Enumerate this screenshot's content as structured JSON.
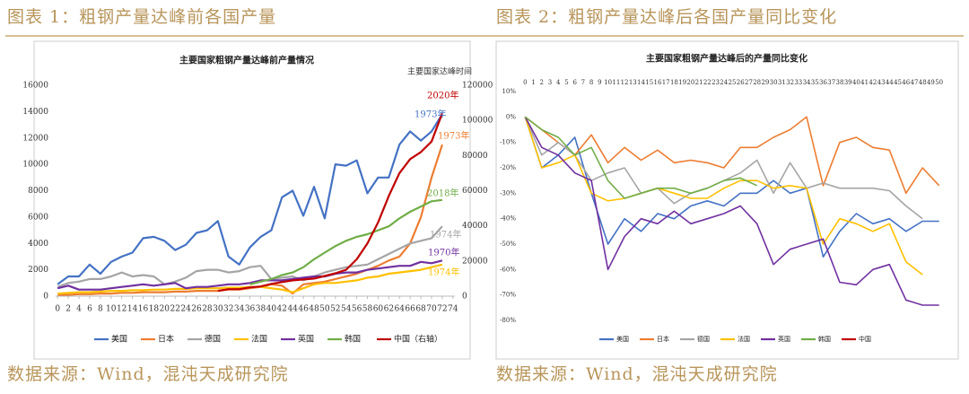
{
  "captions": [
    "图表 1：粗钢产量达峰前各国产量",
    "图表 2：粗钢产量达峰后各国产量同比变化"
  ],
  "sources": [
    "数据来源：Wind，混沌天成研究院",
    "数据来源：Wind，混沌天成研究院"
  ],
  "chart_data": [
    {
      "type": "line",
      "title": "主要国家粗钢产量达峰前产量情况",
      "y2_label": "主要国家达峰时间",
      "x": [
        0,
        2,
        4,
        6,
        8,
        10,
        12,
        14,
        16,
        18,
        20,
        22,
        24,
        26,
        28,
        30,
        32,
        34,
        36,
        38,
        40,
        42,
        44,
        46,
        48,
        50,
        52,
        54,
        56,
        58,
        60,
        62,
        64,
        66,
        68,
        70,
        72
      ],
      "xlim": [
        0,
        74
      ],
      "xticks": [
        0,
        2,
        4,
        6,
        8,
        10,
        12,
        14,
        16,
        18,
        20,
        22,
        24,
        26,
        28,
        30,
        32,
        34,
        36,
        38,
        40,
        42,
        44,
        46,
        48,
        50,
        52,
        54,
        56,
        58,
        60,
        62,
        64,
        66,
        68,
        70,
        72,
        74
      ],
      "ylim": [
        0,
        16000
      ],
      "yticks": [
        0,
        2000,
        4000,
        6000,
        8000,
        10000,
        12000,
        14000,
        16000
      ],
      "y2lim": [
        0,
        120000
      ],
      "y2ticks": [
        0,
        20000,
        40000,
        60000,
        80000,
        100000,
        120000
      ],
      "grid": false,
      "legend": "bottom",
      "xaxis_position": "bottom",
      "annotations": [
        "2020年",
        "1973年",
        "1973年",
        "2018年",
        "1974年",
        "1970年",
        "1974年"
      ],
      "series": [
        {
          "name": "美国",
          "color": "#4472c4",
          "values": [
            900,
            1500,
            1500,
            2400,
            1700,
            2600,
            3000,
            3300,
            4400,
            4500,
            4200,
            3500,
            3900,
            4800,
            5000,
            5700,
            3000,
            2400,
            3700,
            4500,
            5000,
            7500,
            8000,
            6100,
            8300,
            5900,
            10000,
            9900,
            10300,
            7800,
            9000,
            9000,
            11500,
            12500,
            11800,
            12500,
            13800
          ]
        },
        {
          "name": "日本",
          "color": "#ed7d31",
          "values": [
            100,
            100,
            150,
            150,
            200,
            200,
            250,
            250,
            300,
            300,
            300,
            350,
            350,
            400,
            400,
            400,
            500,
            500,
            600,
            700,
            900,
            800,
            200,
            900,
            1000,
            1100,
            1300,
            1500,
            1700,
            2000,
            2300,
            2700,
            3000,
            4000,
            6000,
            9000,
            11500
          ]
        },
        {
          "name": "德国",
          "color": "#a5a5a5",
          "values": [
            700,
            1000,
            1100,
            1300,
            1300,
            1500,
            1800,
            1500,
            1600,
            1500,
            900,
            1100,
            1400,
            1900,
            2000,
            2000,
            1800,
            1900,
            2200,
            2300,
            1300,
            1400,
            1500,
            1200,
            1500,
            1800,
            2000,
            2200,
            2300,
            2400,
            2800,
            3200,
            3600,
            4000,
            4200,
            4400,
            5300
          ]
        },
        {
          "name": "法国",
          "color": "#ffc000",
          "values": [
            200,
            250,
            300,
            300,
            350,
            400,
            400,
            450,
            450,
            500,
            500,
            550,
            550,
            600,
            600,
            600,
            650,
            650,
            700,
            700,
            600,
            500,
            300,
            600,
            900,
            1000,
            1000,
            1100,
            1200,
            1400,
            1500,
            1700,
            1800,
            1900,
            2000,
            2200,
            2400
          ]
        },
        {
          "name": "英国",
          "color": "#7030a0",
          "values": [
            600,
            800,
            500,
            500,
            500,
            600,
            700,
            800,
            900,
            800,
            900,
            1000,
            600,
            700,
            700,
            800,
            900,
            900,
            1000,
            1200,
            1200,
            1200,
            1300,
            1400,
            1500,
            1500,
            1700,
            1800,
            1800,
            2000,
            2100,
            2200,
            2300,
            2300,
            2600,
            2500,
            2700
          ]
        },
        {
          "name": "韩国",
          "color": "#70ad47",
          "values": [
            null,
            null,
            null,
            null,
            null,
            null,
            null,
            null,
            null,
            null,
            null,
            null,
            null,
            null,
            null,
            null,
            null,
            null,
            900,
            1100,
            1300,
            1600,
            1800,
            2200,
            2800,
            3300,
            3800,
            4200,
            4500,
            4700,
            5000,
            5300,
            5900,
            6400,
            6800,
            7200,
            7300
          ]
        },
        {
          "name": "中国（右轴）",
          "color": "#c00000",
          "axis": "y2",
          "values": [
            null,
            null,
            null,
            null,
            null,
            null,
            null,
            null,
            null,
            null,
            null,
            null,
            null,
            null,
            null,
            3000,
            4000,
            4000,
            5000,
            5500,
            7000,
            8000,
            9000,
            9500,
            10000,
            11500,
            13000,
            15000,
            21000,
            30000,
            42000,
            57000,
            70000,
            78000,
            82000,
            88000,
            104000
          ]
        }
      ]
    },
    {
      "type": "line",
      "title": "主要国家粗钢产量达峰后的产量同比变化",
      "x": [
        0,
        2,
        4,
        6,
        8,
        10,
        12,
        14,
        16,
        18,
        20,
        22,
        24,
        26,
        28,
        30,
        32,
        34,
        36,
        38,
        40,
        42,
        44,
        46,
        48,
        50
      ],
      "xlim": [
        0,
        50
      ],
      "xticks": [
        0,
        1,
        2,
        3,
        4,
        5,
        6,
        7,
        8,
        9,
        10,
        11,
        12,
        13,
        14,
        15,
        16,
        17,
        18,
        19,
        20,
        21,
        22,
        23,
        24,
        25,
        26,
        27,
        28,
        29,
        30,
        31,
        32,
        33,
        34,
        35,
        36,
        37,
        38,
        39,
        40,
        41,
        42,
        43,
        44,
        45,
        46,
        47,
        48,
        49,
        50
      ],
      "ylim": [
        -80,
        10
      ],
      "yticks": [
        {
          "value": 10,
          "label": "10%"
        },
        {
          "value": 0,
          "label": "0%"
        },
        {
          "value": -10,
          "label": "-10%"
        },
        {
          "value": -20,
          "label": "-20%"
        },
        {
          "value": -30,
          "label": "-30%"
        },
        {
          "value": -40,
          "label": "-40%"
        },
        {
          "value": -50,
          "label": "-50%"
        },
        {
          "value": -60,
          "label": "-60%"
        },
        {
          "value": -70,
          "label": "-70%"
        },
        {
          "value": -80,
          "label": "-80%"
        }
      ],
      "grid": false,
      "legend": "bottom",
      "xaxis_position": "top",
      "series": [
        {
          "name": "美国",
          "color": "#4472c4",
          "values": [
            0,
            -20,
            -15,
            -8,
            -30,
            -50,
            -40,
            -45,
            -38,
            -40,
            -35,
            -33,
            -35,
            -30,
            -30,
            -25,
            -30,
            -28,
            -55,
            -45,
            -38,
            -42,
            -40,
            -45,
            -41,
            -41
          ]
        },
        {
          "name": "日本",
          "color": "#ed7d31",
          "values": [
            0,
            -5,
            -10,
            -15,
            -7,
            -18,
            -12,
            -17,
            -13,
            -18,
            -17,
            -18,
            -20,
            -12,
            -12,
            -8,
            -5,
            0,
            -27,
            -10,
            -8,
            -12,
            -13,
            -30,
            -20,
            -27
          ]
        },
        {
          "name": "德国",
          "color": "#a5a5a5",
          "values": [
            0,
            -15,
            -10,
            -15,
            -25,
            -22,
            -20,
            -30,
            -28,
            -34,
            -30,
            -28,
            -25,
            -22,
            -17,
            -30,
            -18,
            -28,
            -26,
            -28,
            -28,
            -28,
            -29,
            -35,
            -40,
            null
          ]
        },
        {
          "name": "法国",
          "color": "#ffc000",
          "values": [
            0,
            -20,
            -18,
            -15,
            -30,
            -33,
            -32,
            -30,
            -28,
            -30,
            -32,
            -32,
            -28,
            -25,
            -25,
            -28,
            -27,
            -28,
            -50,
            -40,
            -42,
            -45,
            -42,
            -57,
            -62,
            null
          ]
        },
        {
          "name": "英国",
          "color": "#7030a0",
          "values": [
            0,
            -12,
            -15,
            -22,
            -25,
            -60,
            -47,
            -40,
            -42,
            -37,
            -42,
            -40,
            -38,
            -35,
            -42,
            -58,
            -52,
            -50,
            -48,
            -65,
            -66,
            -60,
            -58,
            -72,
            -74,
            -74
          ]
        },
        {
          "name": "韩国",
          "color": "#70ad47",
          "values": [
            0,
            -5,
            -8,
            -15,
            -12,
            -25,
            -32,
            -30,
            -28,
            -28,
            -30,
            -28,
            -25,
            -24,
            -27,
            null,
            null,
            null,
            null,
            null,
            null,
            null,
            null,
            null,
            null,
            null
          ]
        },
        {
          "name": "中国",
          "color": "#c00000",
          "values": [
            null,
            null,
            null,
            null,
            null,
            null,
            null,
            null,
            null,
            null,
            null,
            null,
            null,
            null,
            null,
            null,
            null,
            null,
            null,
            null,
            null,
            null,
            null,
            null,
            null,
            null
          ]
        }
      ]
    }
  ]
}
